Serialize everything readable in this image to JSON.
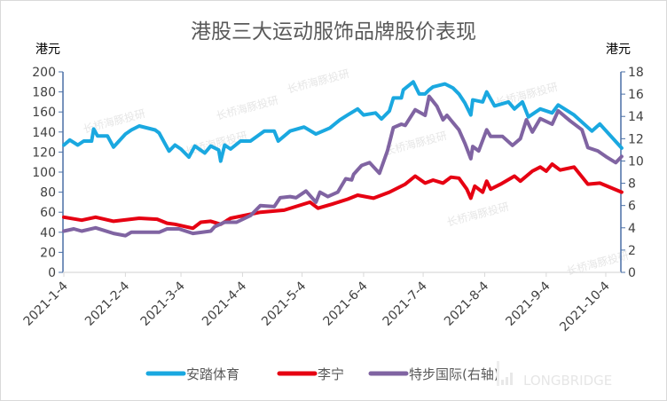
{
  "chart_data": {
    "type": "line",
    "title": "港股三大运动服饰品牌股价表现",
    "y_left": {
      "unit_label": "港元",
      "min": 0,
      "max": 200,
      "step": 20,
      "ticks": [
        "0",
        "20",
        "40",
        "60",
        "80",
        "100",
        "120",
        "140",
        "160",
        "180",
        "200"
      ]
    },
    "y_right": {
      "unit_label": "港元",
      "min": 0,
      "max": 18,
      "step": 2,
      "ticks": [
        "0",
        "2",
        "4",
        "6",
        "8",
        "10",
        "12",
        "14",
        "16",
        "18"
      ]
    },
    "x_ticks": [
      "2021-1-4",
      "2021-2-4",
      "2021-3-4",
      "2021-4-4",
      "2021-5-4",
      "2021-6-4",
      "2021-7-4",
      "2021-8-4",
      "2021-9-4",
      "2021-10-4"
    ],
    "x_range": [
      "2021-01-04",
      "2021-10-12"
    ],
    "grid": false,
    "legend_position": "bottom",
    "series": [
      {
        "name": "安踏体育",
        "axis": "left",
        "color": "#1aa8e0",
        "points": [
          [
            "2021-01-04",
            127
          ],
          [
            "2021-01-07",
            132
          ],
          [
            "2021-01-11",
            127
          ],
          [
            "2021-01-14",
            131
          ],
          [
            "2021-01-18",
            131
          ],
          [
            "2021-01-19",
            143
          ],
          [
            "2021-01-21",
            136
          ],
          [
            "2021-01-26",
            136
          ],
          [
            "2021-01-29",
            125
          ],
          [
            "2021-02-04",
            138
          ],
          [
            "2021-02-07",
            142
          ],
          [
            "2021-02-11",
            146
          ],
          [
            "2021-02-19",
            142
          ],
          [
            "2021-02-21",
            139
          ],
          [
            "2021-02-26",
            121
          ],
          [
            "2021-03-01",
            127
          ],
          [
            "2021-03-04",
            123
          ],
          [
            "2021-03-08",
            115
          ],
          [
            "2021-03-11",
            126
          ],
          [
            "2021-03-16",
            119
          ],
          [
            "2021-03-19",
            126
          ],
          [
            "2021-03-23",
            122
          ],
          [
            "2021-03-24",
            111
          ],
          [
            "2021-03-26",
            127
          ],
          [
            "2021-03-29",
            123
          ],
          [
            "2021-04-03",
            131
          ],
          [
            "2021-04-08",
            131
          ],
          [
            "2021-04-15",
            141
          ],
          [
            "2021-04-20",
            141
          ],
          [
            "2021-04-22",
            131
          ],
          [
            "2021-04-28",
            141
          ],
          [
            "2021-05-05",
            145
          ],
          [
            "2021-05-11",
            138
          ],
          [
            "2021-05-18",
            144
          ],
          [
            "2021-05-23",
            152
          ],
          [
            "2021-05-27",
            157
          ],
          [
            "2021-06-01",
            163
          ],
          [
            "2021-06-04",
            157
          ],
          [
            "2021-06-10",
            159
          ],
          [
            "2021-06-13",
            153
          ],
          [
            "2021-06-17",
            161
          ],
          [
            "2021-06-19",
            174
          ],
          [
            "2021-06-23",
            174
          ],
          [
            "2021-06-24",
            182
          ],
          [
            "2021-06-29",
            190
          ],
          [
            "2021-07-02",
            178
          ],
          [
            "2021-07-05",
            178
          ],
          [
            "2021-07-07",
            182
          ],
          [
            "2021-07-09",
            185
          ],
          [
            "2021-07-15",
            188
          ],
          [
            "2021-07-19",
            184
          ],
          [
            "2021-07-22",
            178
          ],
          [
            "2021-07-25",
            169
          ],
          [
            "2021-07-28",
            157
          ],
          [
            "2021-07-29",
            172
          ],
          [
            "2021-08-03",
            170
          ],
          [
            "2021-08-05",
            180
          ],
          [
            "2021-08-09",
            166
          ],
          [
            "2021-08-16",
            170
          ],
          [
            "2021-08-19",
            163
          ],
          [
            "2021-08-23",
            170
          ],
          [
            "2021-08-26",
            155
          ],
          [
            "2021-09-01",
            163
          ],
          [
            "2021-09-07",
            159
          ],
          [
            "2021-09-10",
            167
          ],
          [
            "2021-09-18",
            157
          ],
          [
            "2021-09-27",
            141
          ],
          [
            "2021-10-01",
            148
          ],
          [
            "2021-10-12",
            124
          ]
        ]
      },
      {
        "name": "李宁",
        "axis": "left",
        "color": "#e60012",
        "points": [
          [
            "2021-01-04",
            55
          ],
          [
            "2021-01-13",
            52
          ],
          [
            "2021-01-20",
            55
          ],
          [
            "2021-01-29",
            51
          ],
          [
            "2021-02-11",
            54
          ],
          [
            "2021-02-20",
            53
          ],
          [
            "2021-02-25",
            49
          ],
          [
            "2021-03-01",
            48
          ],
          [
            "2021-03-10",
            44
          ],
          [
            "2021-03-14",
            50
          ],
          [
            "2021-03-19",
            51
          ],
          [
            "2021-03-24",
            48
          ],
          [
            "2021-03-29",
            54
          ],
          [
            "2021-04-13",
            60
          ],
          [
            "2021-04-25",
            62
          ],
          [
            "2021-05-08",
            70
          ],
          [
            "2021-05-12",
            64
          ],
          [
            "2021-05-19",
            68
          ],
          [
            "2021-05-27",
            73
          ],
          [
            "2021-06-01",
            77
          ],
          [
            "2021-06-09",
            74
          ],
          [
            "2021-06-17",
            80
          ],
          [
            "2021-06-25",
            88
          ],
          [
            "2021-06-30",
            96
          ],
          [
            "2021-07-05",
            89
          ],
          [
            "2021-07-09",
            92
          ],
          [
            "2021-07-14",
            89
          ],
          [
            "2021-07-18",
            95
          ],
          [
            "2021-07-22",
            94
          ],
          [
            "2021-07-26",
            83
          ],
          [
            "2021-07-28",
            74
          ],
          [
            "2021-07-30",
            86
          ],
          [
            "2021-08-03",
            80
          ],
          [
            "2021-08-05",
            91
          ],
          [
            "2021-08-07",
            83
          ],
          [
            "2021-08-12",
            88
          ],
          [
            "2021-08-19",
            96
          ],
          [
            "2021-08-22",
            91
          ],
          [
            "2021-08-28",
            101
          ],
          [
            "2021-09-01",
            105
          ],
          [
            "2021-09-04",
            101
          ],
          [
            "2021-09-07",
            108
          ],
          [
            "2021-09-11",
            102
          ],
          [
            "2021-09-18",
            105
          ],
          [
            "2021-09-25",
            88
          ],
          [
            "2021-10-01",
            89
          ],
          [
            "2021-10-12",
            80
          ]
        ]
      },
      {
        "name": "特步国际(右轴)",
        "axis": "right",
        "color": "#8064a2",
        "points": [
          [
            "2021-01-04",
            3.7
          ],
          [
            "2021-01-09",
            3.9
          ],
          [
            "2021-01-13",
            3.7
          ],
          [
            "2021-01-20",
            4.0
          ],
          [
            "2021-01-29",
            3.5
          ],
          [
            "2021-02-04",
            3.3
          ],
          [
            "2021-02-07",
            3.6
          ],
          [
            "2021-02-21",
            3.6
          ],
          [
            "2021-02-25",
            3.9
          ],
          [
            "2021-03-03",
            3.9
          ],
          [
            "2021-03-10",
            3.5
          ],
          [
            "2021-03-19",
            3.7
          ],
          [
            "2021-03-21",
            4.1
          ],
          [
            "2021-03-26",
            4.5
          ],
          [
            "2021-04-01",
            4.5
          ],
          [
            "2021-04-08",
            5.1
          ],
          [
            "2021-04-13",
            6.0
          ],
          [
            "2021-04-20",
            5.9
          ],
          [
            "2021-04-23",
            6.7
          ],
          [
            "2021-04-28",
            6.8
          ],
          [
            "2021-05-01",
            6.7
          ],
          [
            "2021-05-06",
            7.3
          ],
          [
            "2021-05-11",
            6.3
          ],
          [
            "2021-05-13",
            7.2
          ],
          [
            "2021-05-17",
            6.8
          ],
          [
            "2021-05-22",
            7.2
          ],
          [
            "2021-05-26",
            8.4
          ],
          [
            "2021-05-29",
            8.3
          ],
          [
            "2021-05-30",
            8.8
          ],
          [
            "2021-06-03",
            9.6
          ],
          [
            "2021-06-07",
            9.85
          ],
          [
            "2021-06-12",
            8.9
          ],
          [
            "2021-06-16",
            10.9
          ],
          [
            "2021-06-19",
            13.0
          ],
          [
            "2021-06-23",
            13.3
          ],
          [
            "2021-06-25",
            13.2
          ],
          [
            "2021-06-30",
            14.6
          ],
          [
            "2021-07-05",
            14.1
          ],
          [
            "2021-07-07",
            15.8
          ],
          [
            "2021-07-11",
            14.9
          ],
          [
            "2021-07-14",
            13.7
          ],
          [
            "2021-07-16",
            14.1
          ],
          [
            "2021-07-22",
            12.8
          ],
          [
            "2021-07-25",
            11.6
          ],
          [
            "2021-07-28",
            10.2
          ],
          [
            "2021-07-29",
            11.3
          ],
          [
            "2021-08-01",
            10.9
          ],
          [
            "2021-08-05",
            12.8
          ],
          [
            "2021-08-07",
            12.2
          ],
          [
            "2021-08-13",
            12.2
          ],
          [
            "2021-08-18",
            11.4
          ],
          [
            "2021-08-22",
            12.0
          ],
          [
            "2021-08-25",
            13.7
          ],
          [
            "2021-08-28",
            12.6
          ],
          [
            "2021-09-01",
            13.8
          ],
          [
            "2021-09-07",
            13.3
          ],
          [
            "2021-09-10",
            14.5
          ],
          [
            "2021-09-16",
            13.6
          ],
          [
            "2021-09-22",
            12.8
          ],
          [
            "2021-09-25",
            11.2
          ],
          [
            "2021-09-30",
            10.9
          ],
          [
            "2021-10-04",
            10.4
          ],
          [
            "2021-10-09",
            9.85
          ],
          [
            "2021-10-12",
            10.4
          ]
        ]
      }
    ]
  },
  "watermarks": {
    "text": "长桥海豚投研",
    "brand": "LONGBRIDGE"
  }
}
